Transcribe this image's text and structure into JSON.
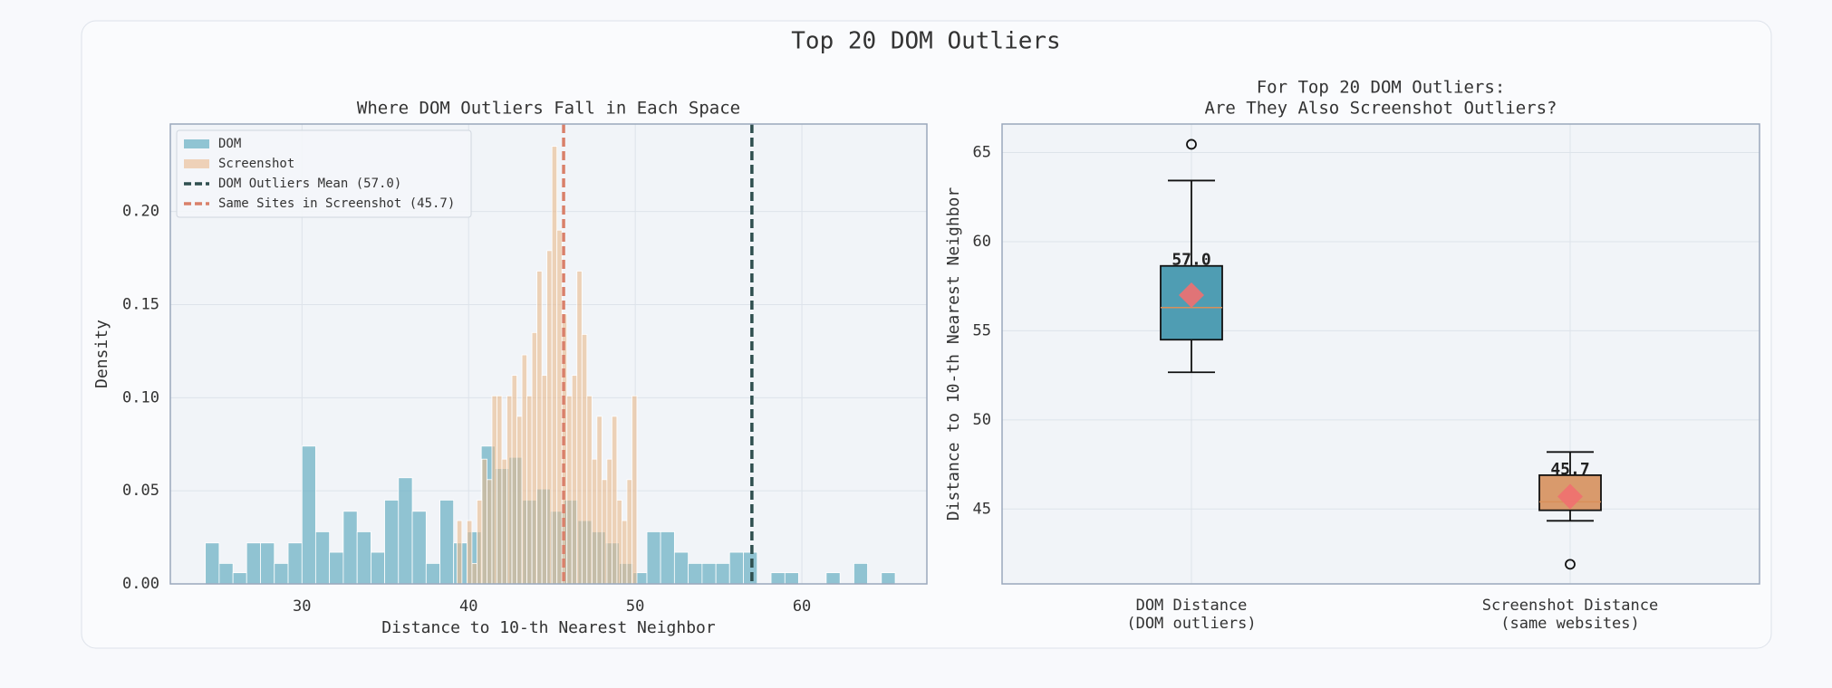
{
  "title": "Top 20 DOM Outliers",
  "chart_data": [
    {
      "type": "histogram",
      "title": "Where DOM Outliers Fall in Each Space",
      "x_label": "Distance to 10-th Nearest Neighbor",
      "y_label": "Density",
      "xlim": [
        22.1,
        67.5
      ],
      "ylim": [
        0,
        0.247
      ],
      "xticks": [
        30,
        40,
        50,
        60
      ],
      "yticks": [
        {
          "value": 0,
          "label": "0.00"
        },
        {
          "value": 0.05,
          "label": "0.05"
        },
        {
          "value": 0.1,
          "label": "0.10"
        },
        {
          "value": 0.15,
          "label": "0.15"
        },
        {
          "value": 0.2,
          "label": "0.20"
        }
      ],
      "grid": true,
      "legend": "upper left",
      "series": [
        {
          "name": "DOM",
          "color": "#6fb3c6",
          "alpha": 0.75,
          "bins": [
            24.2,
            25.03,
            25.86,
            26.68,
            27.51,
            28.34,
            29.17,
            30.0,
            30.82,
            31.65,
            32.48,
            33.31,
            34.14,
            34.96,
            35.79,
            36.62,
            37.45,
            38.28,
            39.1,
            39.93,
            40.76,
            41.59,
            42.42,
            43.24,
            44.07,
            44.9,
            45.73,
            46.56,
            47.38,
            48.21,
            49.04,
            49.87,
            50.7,
            51.52,
            52.35,
            53.18,
            54.01,
            54.84,
            55.66,
            56.49,
            57.32,
            58.15,
            58.98,
            59.8,
            60.63,
            61.46,
            62.29,
            63.12,
            63.94,
            64.77,
            65.6
          ],
          "values": [
            0.022,
            0.011,
            0.006,
            0.022,
            0.022,
            0.011,
            0.022,
            0.074,
            0.028,
            0.017,
            0.039,
            0.028,
            0.017,
            0.045,
            0.057,
            0.039,
            0.011,
            0.045,
            0.022,
            0.028,
            0.074,
            0.062,
            0.068,
            0.045,
            0.051,
            0.039,
            0.045,
            0.034,
            0.028,
            0.022,
            0.011,
            0.006,
            0.028,
            0.028,
            0.017,
            0.011,
            0.011,
            0.011,
            0.017,
            0.017,
            0,
            0.006,
            0.006,
            0,
            0,
            0.006,
            0,
            0.011,
            0,
            0.006
          ]
        },
        {
          "name": "Screenshot",
          "color": "#eab98c",
          "alpha": 0.6,
          "bins": [
            39.3,
            39.6,
            39.9,
            40.2,
            40.5,
            40.8,
            41.1,
            41.4,
            41.7,
            42.0,
            42.3,
            42.6,
            42.9,
            43.2,
            43.5,
            43.8,
            44.1,
            44.4,
            44.7,
            45.0,
            45.3,
            45.6,
            45.9,
            46.2,
            46.5,
            46.8,
            47.1,
            47.4,
            47.7,
            48.0,
            48.3,
            48.6,
            48.9,
            49.2,
            49.5,
            49.8,
            50.1
          ],
          "values": [
            0.034,
            0,
            0.034,
            0.011,
            0.045,
            0.067,
            0.056,
            0.101,
            0.101,
            0.067,
            0.101,
            0.112,
            0.09,
            0.123,
            0.101,
            0.135,
            0.168,
            0.112,
            0.179,
            0.235,
            0.19,
            0.145,
            0.101,
            0.112,
            0.168,
            0.134,
            0.101,
            0.067,
            0.09,
            0.056,
            0.067,
            0.09,
            0.045,
            0.034,
            0.056,
            0.101
          ]
        }
      ],
      "vlines": [
        {
          "value": 57.0,
          "label": "DOM Outliers Mean (57.0)",
          "color": "#2f4f4f"
        },
        {
          "value": 45.7,
          "label": "Same Sites in Screenshot (45.7)",
          "color": "#d9806a"
        }
      ]
    },
    {
      "type": "box",
      "title": [
        "For Top 20 DOM Outliers:",
        "Are They Also Screenshot Outliers?"
      ],
      "y_label": "Distance to 10-th Nearest Neighbor",
      "categories": [
        [
          "DOM Distance",
          "(DOM outliers)"
        ],
        [
          "Screenshot Distance",
          "(same websites)"
        ]
      ],
      "ylim": [
        40.8,
        66.6
      ],
      "yticks": [
        45,
        50,
        55,
        60,
        65
      ],
      "grid": true,
      "boxes": [
        {
          "whislo": 52.67,
          "q1": 54.5,
          "med": 56.3,
          "q3": 58.64,
          "whishi": 63.43,
          "fliers": [
            65.46
          ],
          "color": "#4f9db3"
        },
        {
          "whislo": 44.34,
          "q1": 44.93,
          "med": 45.4,
          "q3": 46.9,
          "whishi": 48.2,
          "fliers": [
            41.9
          ],
          "color": "#d99a6c"
        }
      ],
      "values": [
        57.0,
        45.7
      ],
      "value_labels": [
        "57.0",
        "45.7"
      ],
      "mean_color": "#f07070",
      "median_color": "#d9905a"
    }
  ]
}
